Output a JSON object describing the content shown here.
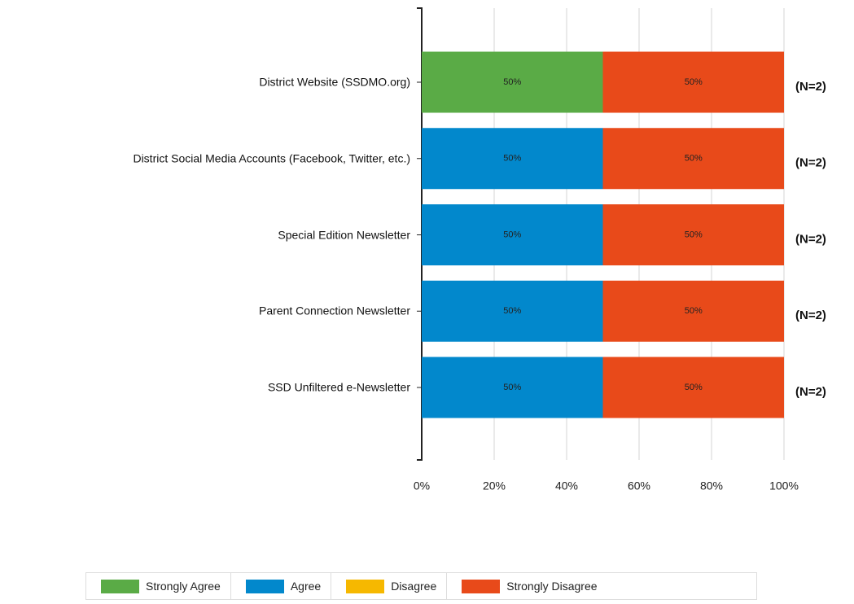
{
  "chart_data": {
    "type": "bar",
    "orientation": "horizontal",
    "stacked": true,
    "categories": [
      "District Website (SSDMO.org)",
      "District Social Media Accounts (Facebook, Twitter, etc.)",
      "Special Edition Newsletter",
      "Parent Connection Newsletter",
      "SSD Unfiltered e-Newsletter"
    ],
    "series": [
      {
        "name": "Strongly Agree",
        "color": "#5aab46",
        "values": [
          50,
          0,
          0,
          0,
          0
        ],
        "value_labels": [
          "50%",
          null,
          null,
          null,
          null
        ]
      },
      {
        "name": "Agree",
        "color": "#0288cc",
        "values": [
          0,
          50,
          50,
          50,
          50
        ],
        "value_labels": [
          null,
          "50%",
          "50%",
          "50%",
          "50%"
        ]
      },
      {
        "name": "Disagree",
        "color": "#f6b800",
        "values": [
          0,
          0,
          0,
          0,
          0
        ],
        "value_labels": [
          null,
          null,
          null,
          null,
          null
        ]
      },
      {
        "name": "Strongly Disagree",
        "color": "#e84a1a",
        "values": [
          50,
          50,
          50,
          50,
          50
        ],
        "value_labels": [
          "50%",
          "50%",
          "50%",
          "50%",
          "50%"
        ]
      }
    ],
    "annotations": [
      "(N=2)",
      "(N=2)",
      "(N=2)",
      "(N=2)",
      "(N=2)"
    ],
    "xlim": [
      0,
      100
    ],
    "xticks": [
      {
        "value": 0,
        "label": "0%"
      },
      {
        "value": 20,
        "label": "20%"
      },
      {
        "value": 40,
        "label": "40%"
      },
      {
        "value": 60,
        "label": "60%"
      },
      {
        "value": 80,
        "label": "80%"
      },
      {
        "value": 100,
        "label": "100%"
      }
    ],
    "grid": true,
    "legend": "bottom"
  }
}
